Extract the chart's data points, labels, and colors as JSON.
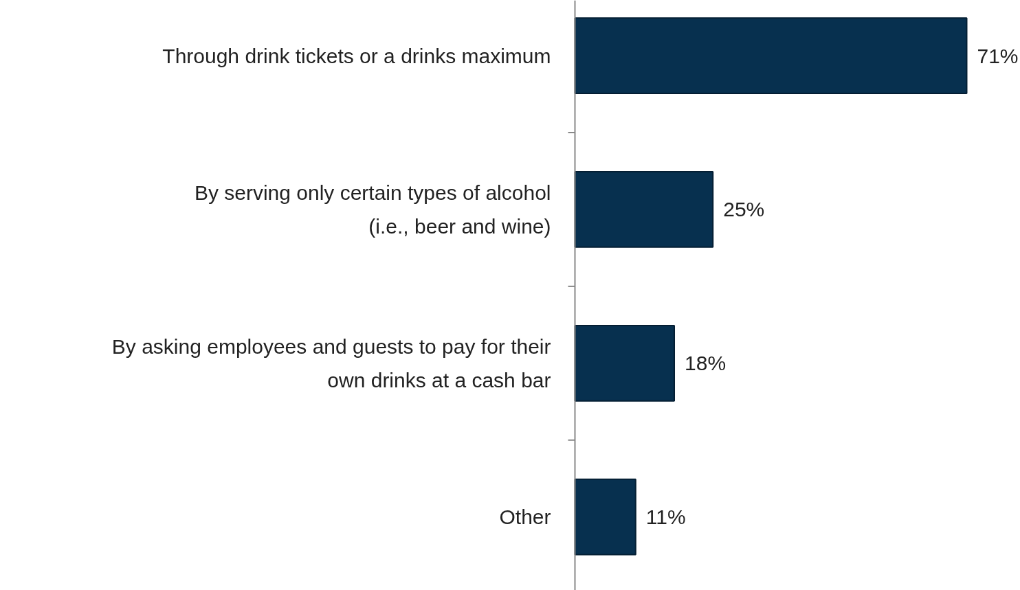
{
  "chart_data": {
    "type": "bar",
    "orientation": "horizontal",
    "categories": [
      "Through drink tickets or a drinks maximum",
      "By serving only certain types of alcohol\n(i.e., beer and wine)",
      "By asking employees and guests to pay for their\nown drinks at a cash bar",
      "Other"
    ],
    "values": [
      71,
      25,
      18,
      11
    ],
    "value_labels": [
      "71%",
      "25%",
      "18%",
      "11%"
    ],
    "color": "#07304f"
  }
}
